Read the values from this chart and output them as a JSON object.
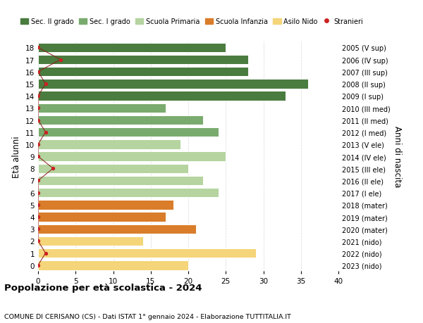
{
  "ages": [
    18,
    17,
    16,
    15,
    14,
    13,
    12,
    11,
    10,
    9,
    8,
    7,
    6,
    5,
    4,
    3,
    2,
    1,
    0
  ],
  "right_labels": [
    "2005 (V sup)",
    "2006 (IV sup)",
    "2007 (III sup)",
    "2008 (II sup)",
    "2009 (I sup)",
    "2010 (III med)",
    "2011 (II med)",
    "2012 (I med)",
    "2013 (V ele)",
    "2014 (IV ele)",
    "2015 (III ele)",
    "2016 (II ele)",
    "2017 (I ele)",
    "2018 (mater)",
    "2019 (mater)",
    "2020 (mater)",
    "2021 (nido)",
    "2022 (nido)",
    "2023 (nido)"
  ],
  "bar_values": [
    25,
    28,
    28,
    36,
    33,
    17,
    22,
    24,
    19,
    25,
    20,
    22,
    24,
    18,
    17,
    21,
    14,
    29,
    20
  ],
  "bar_colors": [
    "#4a7c3f",
    "#4a7c3f",
    "#4a7c3f",
    "#4a7c3f",
    "#4a7c3f",
    "#7aab6e",
    "#7aab6e",
    "#7aab6e",
    "#b5d4a0",
    "#b5d4a0",
    "#b5d4a0",
    "#b5d4a0",
    "#b5d4a0",
    "#d97d2a",
    "#d97d2a",
    "#d97d2a",
    "#f5d57a",
    "#f5d57a",
    "#f5d57a"
  ],
  "stranieri_values": [
    0,
    3,
    0,
    1,
    0,
    0,
    0,
    1,
    0,
    0,
    2,
    0,
    0,
    0,
    0,
    0,
    0,
    1,
    0
  ],
  "legend_labels": [
    "Sec. II grado",
    "Sec. I grado",
    "Scuola Primaria",
    "Scuola Infanzia",
    "Asilo Nido",
    "Stranieri"
  ],
  "legend_colors": [
    "#4a7c3f",
    "#7aab6e",
    "#b5d4a0",
    "#d97d2a",
    "#f5d57a",
    "#cc2222"
  ],
  "ylabel": "Età alunni",
  "right_ylabel": "Anni di nascita",
  "title": "Popolazione per età scolastica - 2024",
  "subtitle": "COMUNE DI CERISANO (CS) - Dati ISTAT 1° gennaio 2024 - Elaborazione TUTTITALIA.IT",
  "xlim": [
    0,
    40
  ],
  "xticks": [
    0,
    5,
    10,
    15,
    20,
    25,
    30,
    35,
    40
  ],
  "background_color": "#ffffff",
  "grid_color": "#cccccc"
}
